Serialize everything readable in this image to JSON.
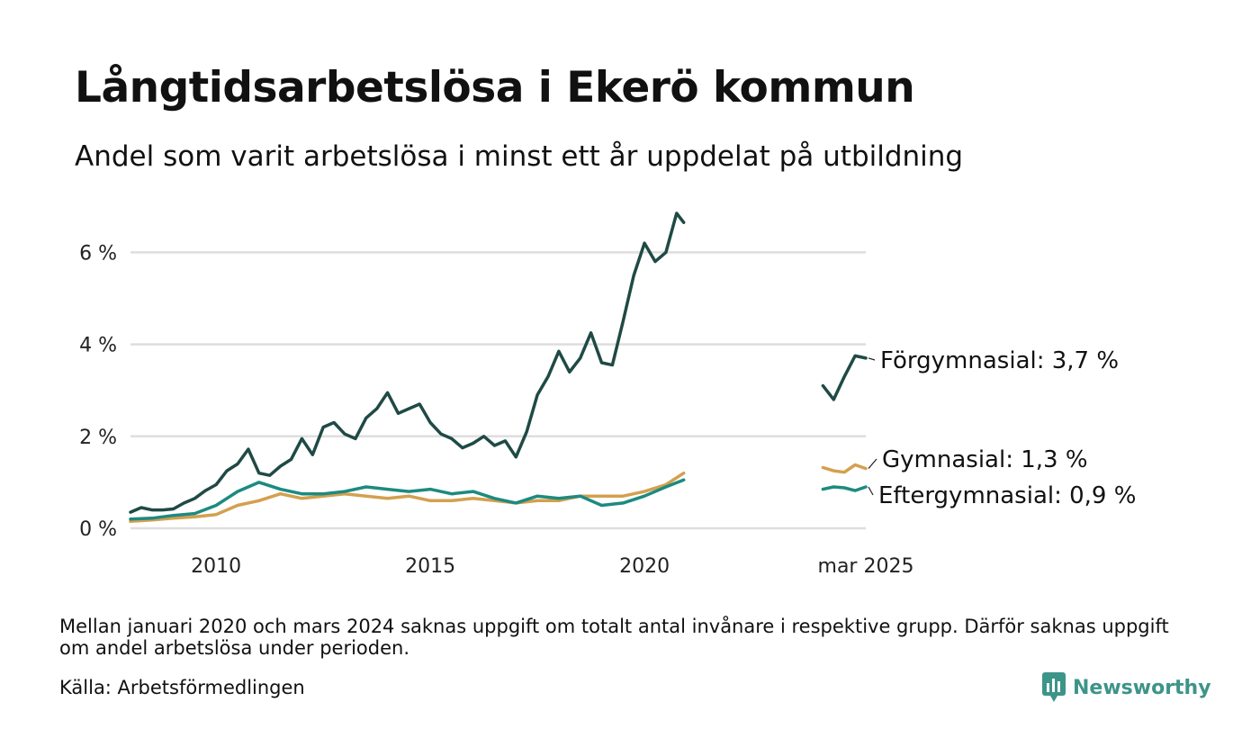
{
  "chart_data": {
    "type": "line",
    "title": "Långtidsarbetslösa i Ekerö kommun",
    "subtitle": "Andel som varit arbetslösa i minst ett år uppdelat på utbildning",
    "y_ticks": [
      "0 %",
      "2 %",
      "4 %",
      "6 %"
    ],
    "y_tick_values": [
      0,
      2,
      4,
      6
    ],
    "ylim": [
      0,
      7
    ],
    "x_ticks": [
      {
        "label": "2010",
        "x": "2010-01"
      },
      {
        "label": "2015",
        "x": "2015-01"
      },
      {
        "label": "2020",
        "x": "2020-01"
      },
      {
        "label": "mar 2025",
        "x": "2025-03"
      }
    ],
    "grid": true,
    "series": [
      {
        "name": "Förgymnasial",
        "color": "#1f4a45",
        "end_label": "Förgymnasial: 3,7 %",
        "points": [
          [
            "2008-01",
            0.35
          ],
          [
            "2008-04",
            0.45
          ],
          [
            "2008-07",
            0.4
          ],
          [
            "2008-10",
            0.4
          ],
          [
            "2009-01",
            0.42
          ],
          [
            "2009-04",
            0.55
          ],
          [
            "2009-07",
            0.65
          ],
          [
            "2009-10",
            0.82
          ],
          [
            "2010-01",
            0.95
          ],
          [
            "2010-04",
            1.25
          ],
          [
            "2010-07",
            1.4
          ],
          [
            "2010-10",
            1.72
          ],
          [
            "2011-01",
            1.2
          ],
          [
            "2011-04",
            1.15
          ],
          [
            "2011-07",
            1.35
          ],
          [
            "2011-10",
            1.5
          ],
          [
            "2012-01",
            1.95
          ],
          [
            "2012-04",
            1.6
          ],
          [
            "2012-07",
            2.2
          ],
          [
            "2012-10",
            2.3
          ],
          [
            "2013-01",
            2.05
          ],
          [
            "2013-04",
            1.95
          ],
          [
            "2013-07",
            2.4
          ],
          [
            "2013-10",
            2.6
          ],
          [
            "2014-01",
            2.95
          ],
          [
            "2014-04",
            2.5
          ],
          [
            "2014-07",
            2.6
          ],
          [
            "2014-10",
            2.7
          ],
          [
            "2015-01",
            2.3
          ],
          [
            "2015-04",
            2.05
          ],
          [
            "2015-07",
            1.95
          ],
          [
            "2015-10",
            1.75
          ],
          [
            "2016-01",
            1.85
          ],
          [
            "2016-04",
            2.0
          ],
          [
            "2016-07",
            1.8
          ],
          [
            "2016-10",
            1.9
          ],
          [
            "2017-01",
            1.55
          ],
          [
            "2017-04",
            2.1
          ],
          [
            "2017-07",
            2.9
          ],
          [
            "2017-10",
            3.3
          ],
          [
            "2018-01",
            3.85
          ],
          [
            "2018-04",
            3.4
          ],
          [
            "2018-07",
            3.7
          ],
          [
            "2018-10",
            4.25
          ],
          [
            "2019-01",
            3.6
          ],
          [
            "2019-04",
            3.55
          ],
          [
            "2019-07",
            4.5
          ],
          [
            "2019-10",
            5.5
          ],
          [
            "2020-01",
            6.2
          ],
          [
            "2020-04",
            5.8
          ],
          [
            "2020-07",
            6.0
          ],
          [
            "2020-10",
            6.85
          ],
          [
            "2020-12",
            6.65
          ]
        ],
        "points_recent": [
          [
            "2024-03",
            3.1
          ],
          [
            "2024-06",
            2.8
          ],
          [
            "2024-09",
            3.3
          ],
          [
            "2024-12",
            3.75
          ],
          [
            "2025-03",
            3.7
          ]
        ]
      },
      {
        "name": "Gymnasial",
        "color": "#d4a04e",
        "end_label": "Gymnasial: 1,3 %",
        "points": [
          [
            "2008-01",
            0.15
          ],
          [
            "2008-07",
            0.18
          ],
          [
            "2009-01",
            0.22
          ],
          [
            "2009-07",
            0.25
          ],
          [
            "2010-01",
            0.3
          ],
          [
            "2010-07",
            0.5
          ],
          [
            "2011-01",
            0.6
          ],
          [
            "2011-07",
            0.75
          ],
          [
            "2012-01",
            0.65
          ],
          [
            "2012-07",
            0.7
          ],
          [
            "2013-01",
            0.75
          ],
          [
            "2013-07",
            0.7
          ],
          [
            "2014-01",
            0.65
          ],
          [
            "2014-07",
            0.7
          ],
          [
            "2015-01",
            0.6
          ],
          [
            "2015-07",
            0.6
          ],
          [
            "2016-01",
            0.65
          ],
          [
            "2016-07",
            0.6
          ],
          [
            "2017-01",
            0.55
          ],
          [
            "2017-07",
            0.6
          ],
          [
            "2018-01",
            0.6
          ],
          [
            "2018-07",
            0.7
          ],
          [
            "2019-01",
            0.7
          ],
          [
            "2019-07",
            0.7
          ],
          [
            "2020-01",
            0.8
          ],
          [
            "2020-07",
            0.95
          ],
          [
            "2020-12",
            1.2
          ]
        ],
        "points_recent": [
          [
            "2024-03",
            1.32
          ],
          [
            "2024-06",
            1.25
          ],
          [
            "2024-09",
            1.22
          ],
          [
            "2024-12",
            1.38
          ],
          [
            "2025-03",
            1.3
          ]
        ]
      },
      {
        "name": "Eftergymnasial",
        "color": "#1d8a80",
        "end_label": "Eftergymnasial: 0,9 %",
        "points": [
          [
            "2008-01",
            0.2
          ],
          [
            "2008-07",
            0.22
          ],
          [
            "2009-01",
            0.28
          ],
          [
            "2009-07",
            0.32
          ],
          [
            "2010-01",
            0.5
          ],
          [
            "2010-07",
            0.8
          ],
          [
            "2011-01",
            1.0
          ],
          [
            "2011-07",
            0.85
          ],
          [
            "2012-01",
            0.75
          ],
          [
            "2012-07",
            0.75
          ],
          [
            "2013-01",
            0.8
          ],
          [
            "2013-07",
            0.9
          ],
          [
            "2014-01",
            0.85
          ],
          [
            "2014-07",
            0.8
          ],
          [
            "2015-01",
            0.85
          ],
          [
            "2015-07",
            0.75
          ],
          [
            "2016-01",
            0.8
          ],
          [
            "2016-07",
            0.65
          ],
          [
            "2017-01",
            0.55
          ],
          [
            "2017-07",
            0.7
          ],
          [
            "2018-01",
            0.65
          ],
          [
            "2018-07",
            0.7
          ],
          [
            "2019-01",
            0.5
          ],
          [
            "2019-07",
            0.55
          ],
          [
            "2020-01",
            0.7
          ],
          [
            "2020-07",
            0.9
          ],
          [
            "2020-12",
            1.05
          ]
        ],
        "points_recent": [
          [
            "2024-03",
            0.85
          ],
          [
            "2024-06",
            0.9
          ],
          [
            "2024-09",
            0.88
          ],
          [
            "2024-12",
            0.82
          ],
          [
            "2025-03",
            0.9
          ]
        ]
      }
    ]
  },
  "footnote": "Mellan januari 2020 och mars 2024 saknas uppgift om totalt antal invånare i respektive grupp. Därför saknas uppgift om andel arbetslösa under perioden.",
  "source": "Källa: Arbetsförmedlingen",
  "logo": {
    "text": "Newsworthy",
    "icon": "newsworthy-logo-icon",
    "color": "#3d9488"
  }
}
